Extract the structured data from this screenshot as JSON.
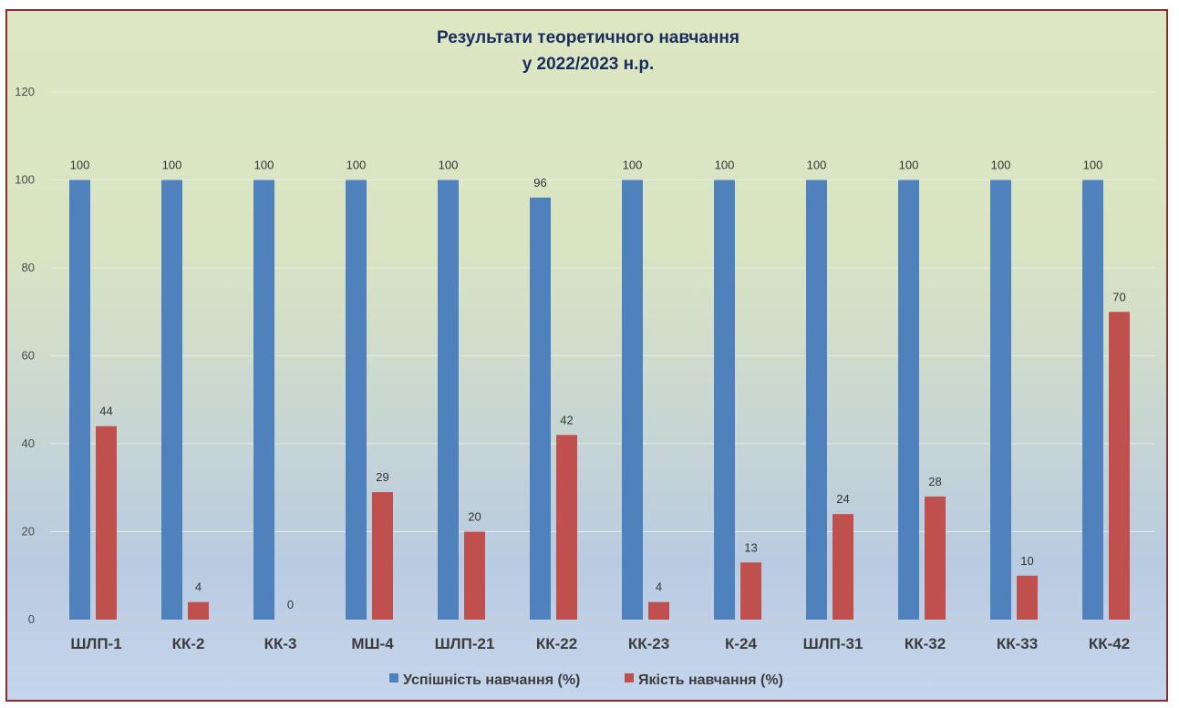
{
  "chart_data": {
    "type": "bar",
    "title_lines": [
      "Результати теоретичного навчання",
      "у 2022/2023 н.р."
    ],
    "categories": [
      "ШЛП-1",
      "КК-2",
      "КК-3",
      "МШ-4",
      "ШЛП-21",
      "КК-22",
      "КК-23",
      "К-24",
      "ШЛП-31",
      "КК-32",
      "КК-33",
      "КК-42"
    ],
    "series": [
      {
        "name": "Успішність навчання (%)",
        "color": "#4f81bd",
        "values": [
          100,
          100,
          100,
          100,
          100,
          96,
          100,
          100,
          100,
          100,
          100,
          100
        ]
      },
      {
        "name": "Якість навчання (%)",
        "color": "#c0504d",
        "values": [
          44,
          4,
          0,
          29,
          20,
          42,
          4,
          13,
          24,
          28,
          10,
          70
        ]
      }
    ],
    "yticks": [
      0,
      20,
      40,
      60,
      80,
      100,
      120
    ],
    "ylim": [
      0,
      120
    ],
    "grid": true,
    "legend_position": "bottom"
  }
}
